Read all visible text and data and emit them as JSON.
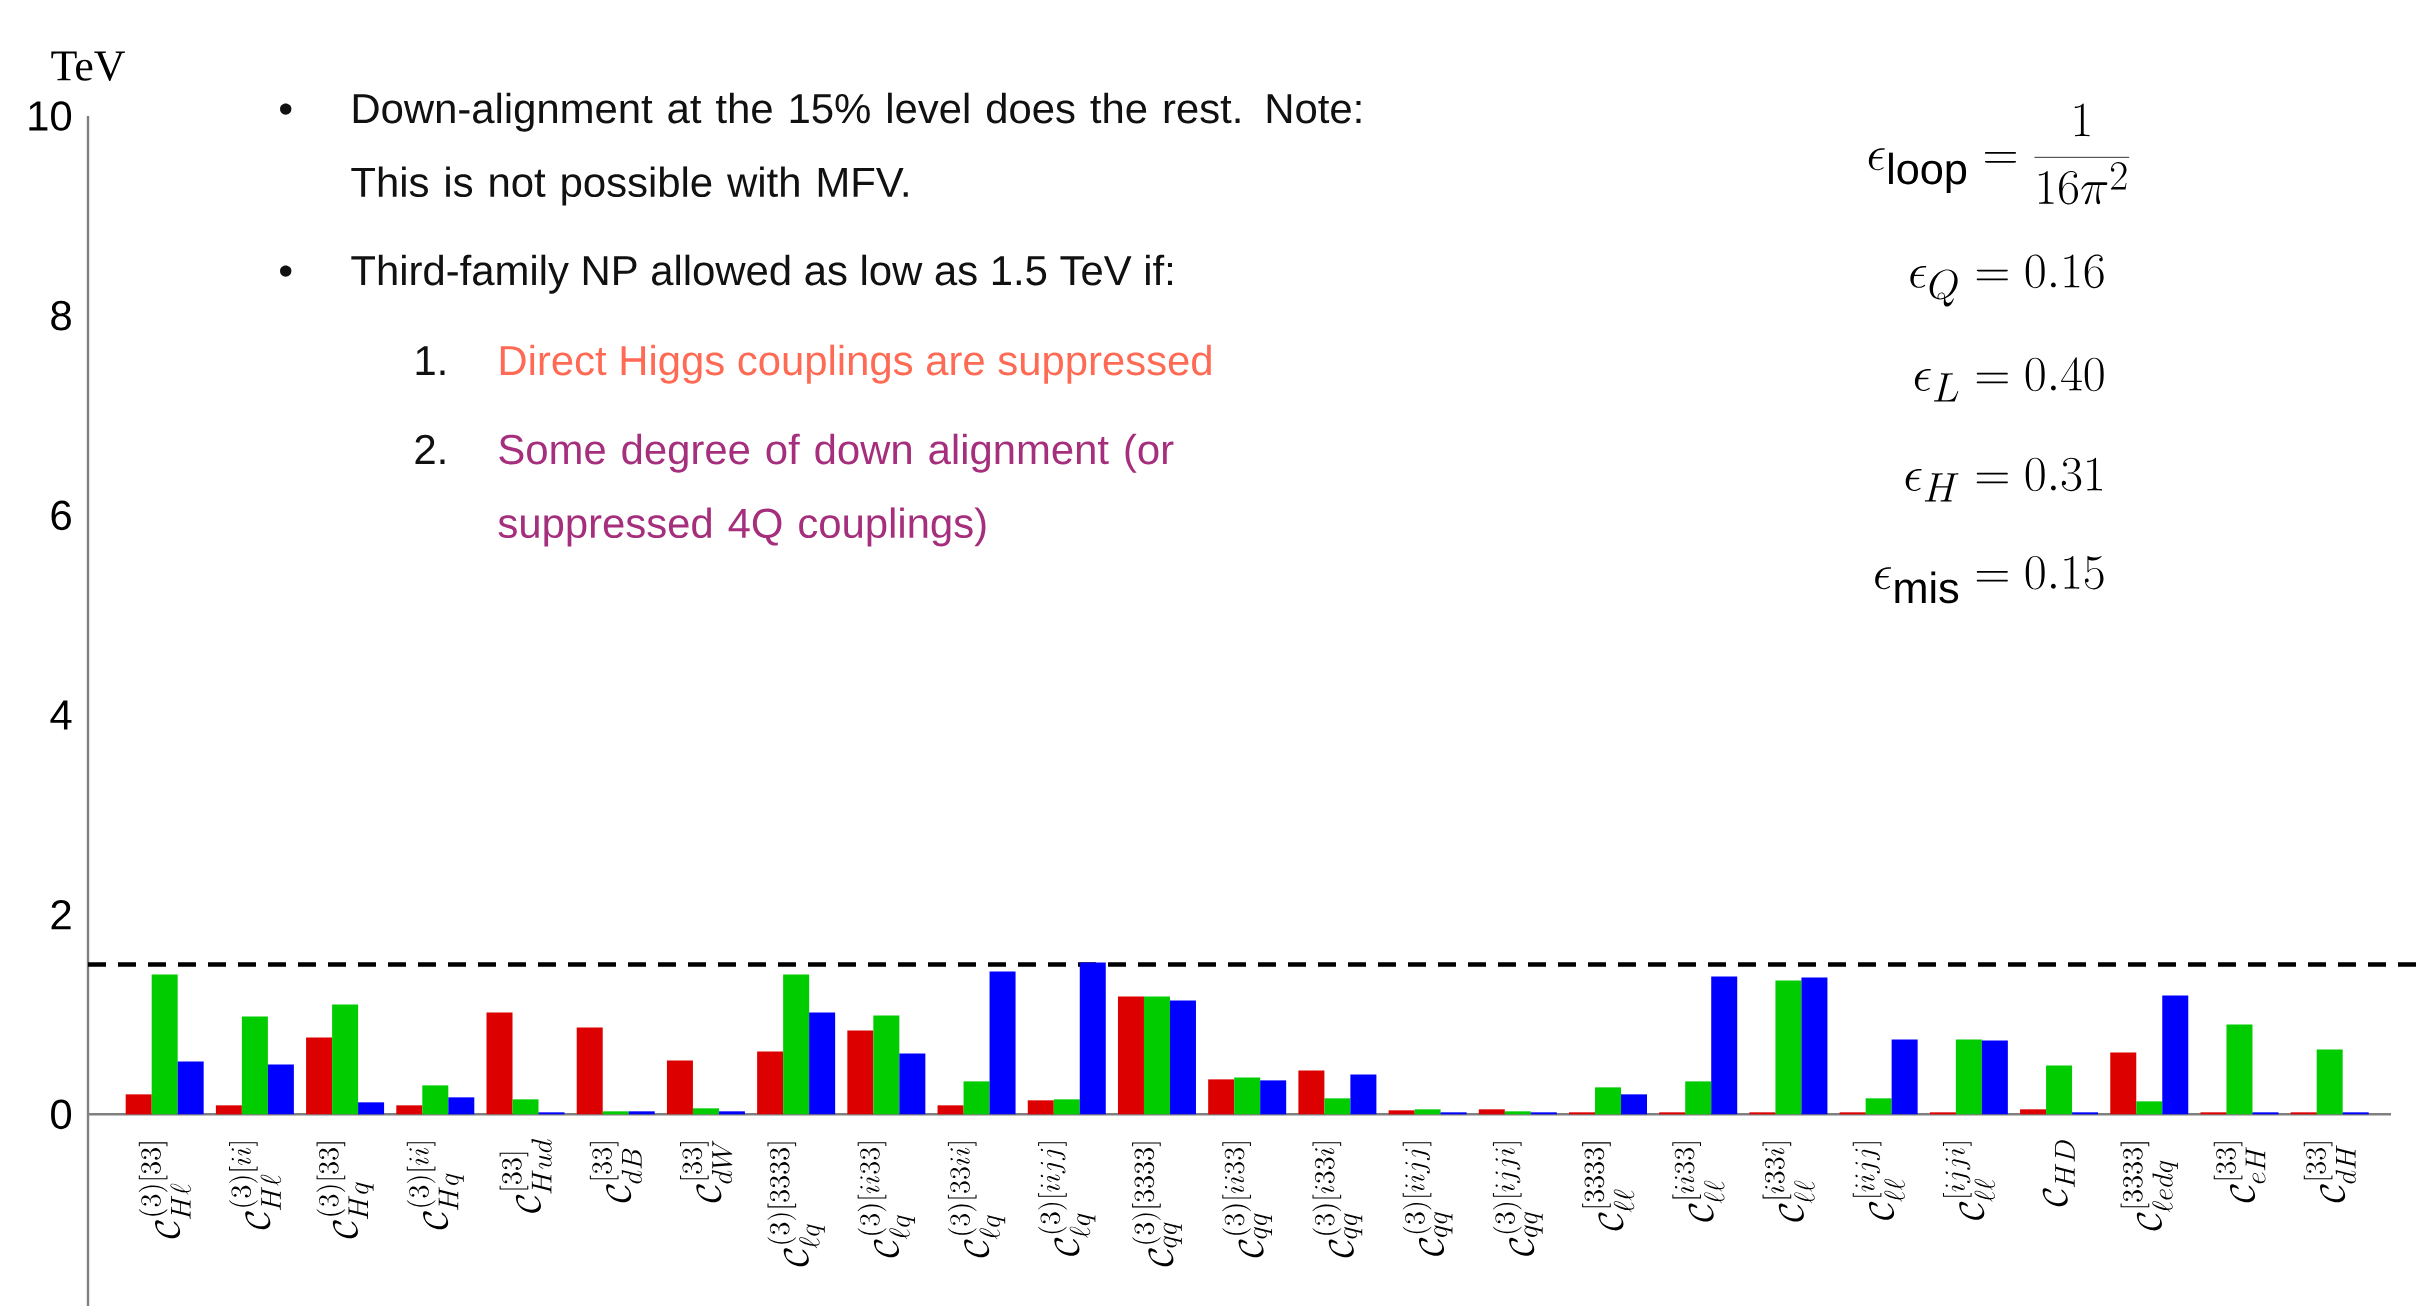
{
  "chart_data": {
    "type": "bar",
    "ylabel": "TeV",
    "categories": [
      "\\mathcal{C}_{H\\ell}^{(3)[33]}",
      "\\mathcal{C}_{H\\ell}^{(3)[ii]}",
      "\\mathcal{C}_{Hq}^{(3)[33]}",
      "\\mathcal{C}_{Hq}^{(3)[ii]}",
      "\\mathcal{C}_{Hud}^{[33]}",
      "\\mathcal{C}_{dB}^{[33]}",
      "\\mathcal{C}_{dW}^{[33]}",
      "\\mathcal{C}_{\\ell q}^{(3)[3333]}",
      "\\mathcal{C}_{\\ell q}^{(3)[ii33]}",
      "\\mathcal{C}_{\\ell q}^{(3)[33ii]}",
      "\\mathcal{C}_{\\ell q}^{(3)[iijj]}",
      "\\mathcal{C}_{qq}^{(3)[3333]}",
      "\\mathcal{C}_{qq}^{(3)[ii33]}",
      "\\mathcal{C}_{qq}^{(3)[i33i]}",
      "\\mathcal{C}_{qq}^{(3)[iijj]}",
      "\\mathcal{C}_{qq}^{(3)[ijji]}",
      "\\mathcal{C}_{\\ell\\ell}^{[3333]}",
      "\\mathcal{C}_{\\ell\\ell}^{[ii33]}",
      "\\mathcal{C}_{\\ell\\ell}^{[i33i]}",
      "\\mathcal{C}_{\\ell\\ell}^{[iijj]}",
      "\\mathcal{C}_{\\ell\\ell}^{[ijji]}",
      "\\mathcal{C}_{HD}",
      "\\mathcal{C}_{\\ell edq}^{[3333]}",
      "\\mathcal{C}_{eH}^{[33]}",
      "\\mathcal{C}_{dH}^{[33]}"
    ],
    "series": [
      {
        "color": "#dd0000",
        "values": [
          0.2,
          0.09,
          0.77,
          0.09,
          1.02,
          0.87,
          0.54,
          0.63,
          0.84,
          0.09,
          0.14,
          1.18,
          0.35,
          0.44,
          0.04,
          0.05,
          0.02,
          0.02,
          0.02,
          0.02,
          0.02,
          0.05,
          0.62,
          0.02,
          0.02
        ]
      },
      {
        "color": "#00cc00",
        "values": [
          1.4,
          0.98,
          1.1,
          0.29,
          0.15,
          0.03,
          0.06,
          1.4,
          0.99,
          0.33,
          0.15,
          1.18,
          0.37,
          0.16,
          0.05,
          0.03,
          0.27,
          0.33,
          1.34,
          0.16,
          0.75,
          0.49,
          0.13,
          0.9,
          0.65
        ]
      },
      {
        "color": "#0000ff",
        "values": [
          0.53,
          0.5,
          0.12,
          0.17,
          0.02,
          0.03,
          0.03,
          1.02,
          0.61,
          1.43,
          1.52,
          1.14,
          0.34,
          0.4,
          0.02,
          0.02,
          0.2,
          1.38,
          1.37,
          0.75,
          0.74,
          0.02,
          1.19,
          0.02,
          0.02
        ]
      }
    ],
    "ylim": [
      -1.92,
      10
    ],
    "yticks": [
      0,
      2,
      4,
      6,
      8,
      10
    ],
    "ref_lines": [
      {
        "axis": "y",
        "value": 1.5,
        "color": "#000000",
        "line_style": "dashed"
      }
    ],
    "annotations": [
      "•",
      "Down-alignment at the 15% level does the rest. Note: This is not possible with MFV.",
      "•",
      "Third-family NP allowed as low as 1.5 TeV if:",
      "1.",
      "Direct Higgs couplings are suppressed",
      "2.",
      "Some degree of down alignment (or suppressed 4Q couplings)",
      "\\epsilon_{\\mathrm{loop}} = \\frac{1}{16\\pi^2}",
      "\\epsilon_Q = 0.16",
      "\\epsilon_L = 0.40",
      "\\epsilon_H = 0.31",
      "\\epsilon_{\\mathrm{mis}} = 0.15"
    ]
  }
}
